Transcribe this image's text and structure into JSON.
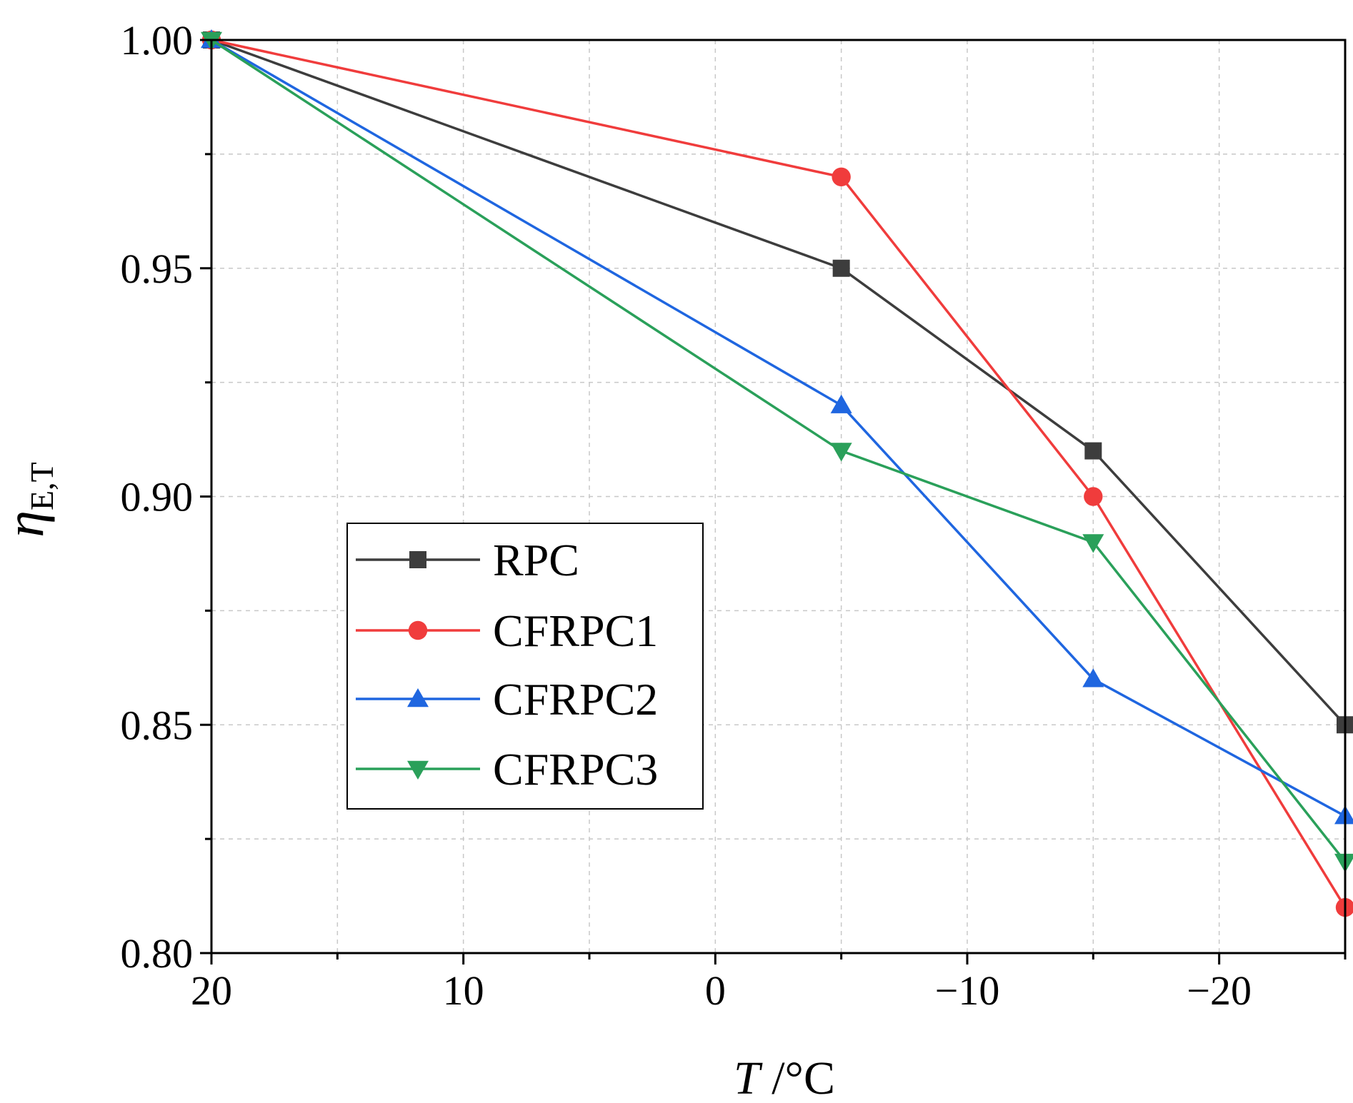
{
  "chart_data": {
    "type": "line",
    "title": "",
    "xlabel": {
      "italic": "T",
      "rest": " /°C"
    },
    "ylabel": {
      "symbol": "η",
      "subscript": "E,T"
    },
    "x": [
      20,
      -5,
      -15,
      -25
    ],
    "xlim": [
      20,
      -25
    ],
    "ylim": [
      0.8,
      1.0
    ],
    "x_ticks": [
      20,
      10,
      0,
      -10,
      -20
    ],
    "x_tick_labels": [
      "20",
      "10",
      "0",
      "−10",
      "−20"
    ],
    "y_ticks": [
      0.8,
      0.85,
      0.9,
      0.95,
      1.0
    ],
    "y_tick_labels": [
      "0.80",
      "0.85",
      "0.90",
      "0.95",
      "1.00"
    ],
    "grid": true,
    "legend_position": "center-left",
    "series": [
      {
        "name": "RPC",
        "color": "#3d3d3d",
        "marker": "square",
        "values": [
          1.0,
          0.95,
          0.91,
          0.85
        ]
      },
      {
        "name": "CFRPC1",
        "color": "#f03c3c",
        "marker": "circle",
        "values": [
          1.0,
          0.97,
          0.9,
          0.81
        ]
      },
      {
        "name": "CFRPC2",
        "color": "#1f66e0",
        "marker": "triangle-up",
        "values": [
          1.0,
          0.92,
          0.86,
          0.83
        ]
      },
      {
        "name": "CFRPC3",
        "color": "#2aa05a",
        "marker": "triangle-down",
        "values": [
          1.0,
          0.91,
          0.89,
          0.82
        ]
      }
    ]
  }
}
